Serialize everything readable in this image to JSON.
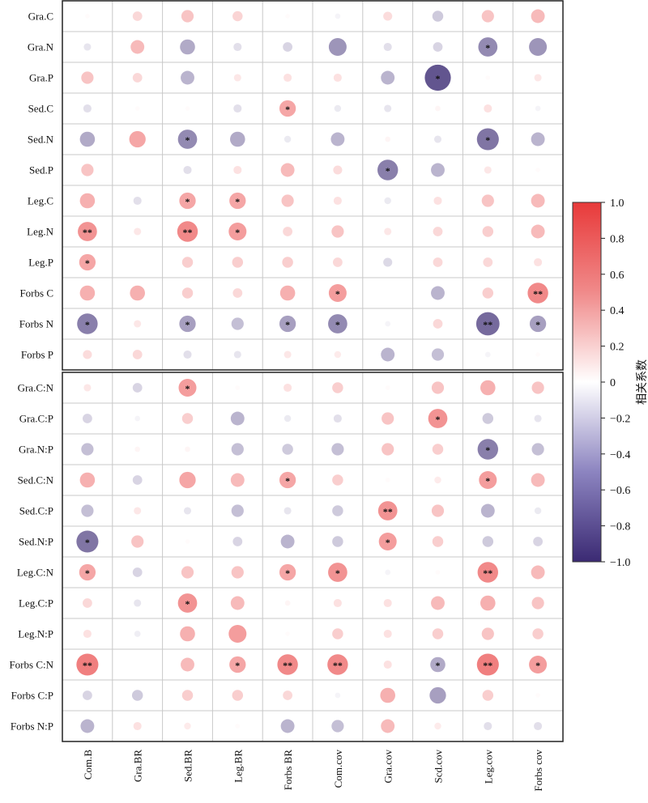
{
  "chart_data": {
    "type": "heatmap",
    "columns": [
      "Com.B",
      "Gra.BR",
      "Sed.BR",
      "Leg.BR",
      "Forbs BR",
      "Com.cov",
      "Gra.cov",
      "Scd.cov",
      "Leg.cov",
      "Forbs cov"
    ],
    "panels": [
      {
        "rows": [
          "Gra.C",
          "Gra.N",
          "Gra.P",
          "Sed.C",
          "Sed.N",
          "Sed.P",
          "Leg.C",
          "Leg.N",
          "Leg.P",
          "Forbs C",
          "Forbs N",
          "Forbs P"
        ],
        "values": [
          [
            0.02,
            0.2,
            0.3,
            0.22,
            0.02,
            -0.05,
            0.18,
            -0.25,
            0.3,
            0.35
          ],
          [
            -0.12,
            0.35,
            -0.4,
            -0.15,
            -0.2,
            -0.5,
            -0.15,
            -0.2,
            -0.55,
            -0.5
          ],
          [
            0.3,
            0.2,
            -0.35,
            0.12,
            0.15,
            0.15,
            -0.35,
            -0.8,
            0.02,
            0.12
          ],
          [
            -0.15,
            0.02,
            0.02,
            -0.15,
            0.45,
            -0.1,
            -0.12,
            0.05,
            0.15,
            -0.05
          ],
          [
            -0.4,
            0.45,
            -0.55,
            -0.4,
            -0.1,
            -0.35,
            0.05,
            -0.12,
            -0.65,
            -0.35
          ],
          [
            0.3,
            0.0,
            -0.15,
            0.15,
            0.35,
            0.18,
            -0.6,
            -0.35,
            0.12,
            0.02
          ],
          [
            0.4,
            -0.15,
            0.45,
            0.45,
            0.3,
            0.15,
            -0.1,
            0.15,
            0.3,
            0.35
          ],
          [
            0.55,
            0.12,
            0.6,
            0.5,
            0.2,
            0.3,
            0.12,
            0.2,
            0.25,
            0.35
          ],
          [
            0.45,
            0.0,
            0.25,
            0.25,
            0.25,
            0.2,
            -0.18,
            0.2,
            0.2,
            0.15
          ],
          [
            0.4,
            0.4,
            0.25,
            0.2,
            0.4,
            0.5,
            0.0,
            -0.35,
            0.25,
            0.6
          ],
          [
            -0.6,
            0.12,
            -0.45,
            -0.3,
            -0.45,
            -0.55,
            -0.05,
            0.2,
            -0.7,
            -0.45
          ],
          [
            0.18,
            0.2,
            -0.15,
            -0.12,
            0.12,
            0.1,
            -0.35,
            -0.3,
            -0.05,
            0.02
          ]
        ],
        "stars": [
          [
            "",
            "",
            "",
            "",
            "",
            "",
            "",
            "",
            "",
            ""
          ],
          [
            "",
            "",
            "",
            "",
            "",
            "",
            "",
            "",
            "*",
            ""
          ],
          [
            "",
            "",
            "",
            "",
            "",
            "",
            "",
            "*",
            "",
            ""
          ],
          [
            "",
            "",
            "",
            "",
            "*",
            "",
            "",
            "",
            "",
            ""
          ],
          [
            "",
            "",
            "*",
            "",
            "",
            "",
            "",
            "",
            "*",
            ""
          ],
          [
            "",
            "",
            "",
            "",
            "",
            "",
            "*",
            "",
            "",
            ""
          ],
          [
            "",
            "",
            "*",
            "*",
            "",
            "",
            "",
            "",
            "",
            ""
          ],
          [
            "**",
            "",
            "**",
            "*",
            "",
            "",
            "",
            "",
            "",
            ""
          ],
          [
            "*",
            "",
            "",
            "",
            "",
            "",
            "",
            "",
            "",
            ""
          ],
          [
            "",
            "",
            "",
            "",
            "",
            "*",
            "",
            "",
            "",
            "**"
          ],
          [
            "*",
            "",
            "*",
            "",
            "*",
            "*",
            "",
            "",
            "**",
            "*"
          ],
          [
            "",
            "",
            "",
            "",
            "",
            "",
            "",
            "",
            "",
            ""
          ]
        ]
      },
      {
        "rows": [
          "Gra.C:N",
          "Gra.C:P",
          "Gra.N:P",
          "Sed.C:N",
          "Sed.C:P",
          "Sed.N:P",
          "Leg.C:N",
          "Leg.C:P",
          "Leg.N:P",
          "Forbs C:N",
          "Forbs C:P",
          "Forbs N:P"
        ],
        "values": [
          [
            0.12,
            -0.2,
            0.5,
            0.02,
            0.15,
            0.25,
            0.02,
            0.3,
            0.4,
            0.3
          ],
          [
            -0.2,
            -0.05,
            0.25,
            -0.35,
            -0.1,
            -0.15,
            0.3,
            0.55,
            -0.25,
            -0.12
          ],
          [
            -0.3,
            0.05,
            0.05,
            -0.3,
            -0.25,
            -0.3,
            0.3,
            0.25,
            -0.6,
            -0.3
          ],
          [
            0.4,
            -0.2,
            0.45,
            0.35,
            0.45,
            0.25,
            0.02,
            0.1,
            0.5,
            0.35
          ],
          [
            -0.3,
            0.12,
            -0.12,
            -0.3,
            -0.12,
            -0.25,
            0.55,
            0.3,
            -0.35,
            -0.1
          ],
          [
            -0.65,
            0.3,
            0.02,
            -0.2,
            -0.35,
            -0.25,
            0.5,
            0.25,
            -0.25,
            -0.2
          ],
          [
            0.45,
            -0.2,
            0.3,
            0.3,
            0.45,
            0.55,
            -0.05,
            0.02,
            0.6,
            0.35
          ],
          [
            0.2,
            -0.12,
            0.55,
            0.35,
            0.05,
            0.15,
            0.15,
            0.35,
            0.4,
            0.3
          ],
          [
            0.15,
            -0.08,
            0.4,
            0.5,
            0.02,
            0.25,
            0.15,
            0.25,
            0.3,
            0.25
          ],
          [
            0.65,
            0.0,
            0.35,
            0.45,
            0.6,
            0.6,
            0.15,
            -0.4,
            0.65,
            0.5
          ],
          [
            -0.2,
            -0.25,
            0.25,
            0.25,
            0.2,
            -0.05,
            0.4,
            -0.45,
            0.25,
            0.02
          ],
          [
            -0.35,
            0.15,
            0.1,
            0.02,
            -0.35,
            -0.3,
            0.35,
            0.1,
            -0.15,
            -0.15
          ]
        ],
        "stars": [
          [
            "",
            "",
            "*",
            "",
            "",
            "",
            "",
            "",
            "",
            ""
          ],
          [
            "",
            "",
            "",
            "",
            "",
            "",
            "",
            "*",
            "",
            ""
          ],
          [
            "",
            "",
            "",
            "",
            "",
            "",
            "",
            "",
            "*",
            ""
          ],
          [
            "",
            "",
            "",
            "",
            "*",
            "",
            "",
            "",
            "*",
            ""
          ],
          [
            "",
            "",
            "",
            "",
            "",
            "",
            "**",
            "",
            "",
            ""
          ],
          [
            "*",
            "",
            "",
            "",
            "",
            "",
            "*",
            "",
            "",
            ""
          ],
          [
            "*",
            "",
            "",
            "",
            "*",
            "*",
            "",
            "",
            "**",
            ""
          ],
          [
            "",
            "",
            "*",
            "",
            "",
            "",
            "",
            "",
            "",
            ""
          ],
          [
            "",
            "",
            "",
            "",
            "",
            "",
            "",
            "",
            "",
            ""
          ],
          [
            "**",
            "",
            "",
            "*",
            "**",
            "**",
            "",
            "*",
            "**",
            "*"
          ],
          [
            "",
            "",
            "",
            "",
            "",
            "",
            "",
            "",
            "",
            ""
          ],
          [
            "",
            "",
            "",
            "",
            "",
            "",
            "",
            "",
            "",
            ""
          ]
        ]
      }
    ],
    "colorbar": {
      "title": "相关系数",
      "min": -1.0,
      "max": 1.0,
      "ticks": [
        "1.0",
        "0.8",
        "0.6",
        "0.4",
        "0.2",
        "0",
        "−0.2",
        "−0.4",
        "−0.6",
        "−0.8",
        "−1.0"
      ],
      "tick_values": [
        1.0,
        0.8,
        0.6,
        0.4,
        0.2,
        0,
        -0.2,
        -0.4,
        -0.6,
        -0.8,
        -1.0
      ],
      "color_neg": "#3b2a73",
      "color_mid": "#ffffff",
      "color_pos": "#e83a3a"
    },
    "grid": true
  }
}
